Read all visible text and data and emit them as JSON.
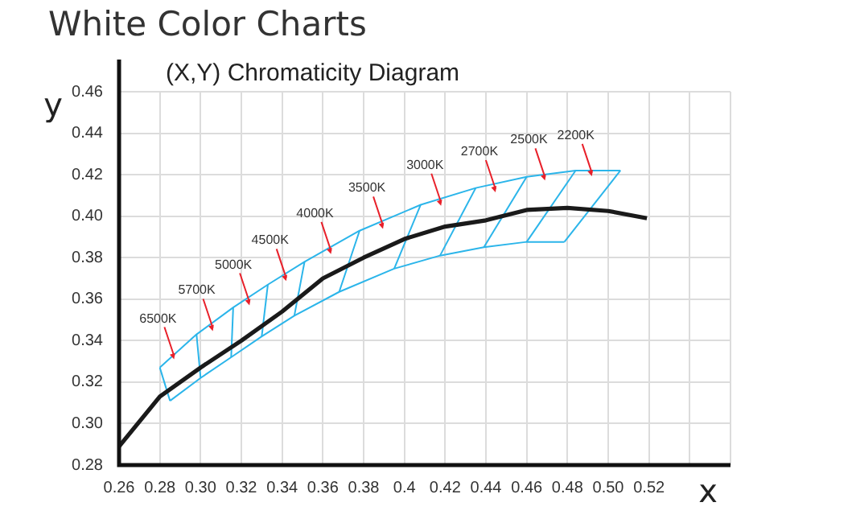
{
  "chart_data": {
    "type": "line",
    "title": "White Color Charts",
    "subtitle": "(X,Y) Chromaticity Diagram",
    "xlabel": "x",
    "ylabel": "y",
    "xlim": [
      0.26,
      0.56
    ],
    "ylim": [
      0.28,
      0.46
    ],
    "xticks": [
      0.26,
      0.28,
      {
        "value": 0.3,
        "label": "0.30"
      },
      0.32,
      0.34,
      0.36,
      0.38,
      0.4,
      0.42,
      0.44,
      0.46,
      0.48,
      {
        "value": 0.5,
        "label": "0.50"
      },
      0.52,
      {
        "value": 0.54,
        "label": null
      },
      {
        "value": 0.56,
        "label": null
      }
    ],
    "yticks": [
      0.28,
      {
        "value": 0.3,
        "label": "0.30"
      },
      0.32,
      0.34,
      0.36,
      0.38,
      {
        "value": 0.4,
        "label": "0.40"
      },
      0.42,
      0.44,
      0.46
    ],
    "grid": true,
    "legend": false,
    "marker": "none",
    "line_style": "solid",
    "series": [
      {
        "color": "#1a1a1a",
        "x": [
          0.26,
          0.28,
          0.3,
          0.32,
          0.34,
          0.36,
          0.38,
          0.4,
          0.42,
          0.44,
          0.46,
          0.48,
          0.5,
          0.519
        ],
        "values": [
          0.289,
          0.313,
          0.327,
          0.34,
          0.354,
          0.37,
          0.38,
          0.389,
          0.395,
          0.398,
          0.403,
          0.404,
          0.4025,
          0.399
        ]
      },
      {
        "color": "#2bb5ea",
        "x": [
          0.28,
          0.298,
          0.316,
          0.333,
          0.351,
          0.378,
          0.408,
          0.435,
          0.46,
          0.484,
          0.506
        ],
        "values": [
          0.327,
          0.343,
          0.356,
          0.367,
          0.378,
          0.393,
          0.4055,
          0.4136,
          0.419,
          0.422,
          0.422
        ]
      },
      {
        "color": "#2bb5ea",
        "x": [
          0.285,
          0.3,
          0.315,
          0.33,
          0.346,
          0.368,
          0.395,
          0.4175,
          0.439,
          0.46,
          0.4785
        ],
        "values": [
          0.311,
          0.322,
          0.332,
          0.342,
          0.352,
          0.3635,
          0.3747,
          0.381,
          0.385,
          0.3876,
          0.3876
        ]
      },
      {
        "color": "#2bb5ea",
        "x": [
          0.28,
          0.285
        ],
        "values": [
          0.327,
          0.311
        ]
      },
      {
        "color": "#2bb5ea",
        "x": [
          0.298,
          0.3
        ],
        "values": [
          0.343,
          0.322
        ]
      },
      {
        "color": "#2bb5ea",
        "x": [
          0.316,
          0.315
        ],
        "values": [
          0.356,
          0.332
        ]
      },
      {
        "color": "#2bb5ea",
        "x": [
          0.333,
          0.33
        ],
        "values": [
          0.367,
          0.342
        ]
      },
      {
        "color": "#2bb5ea",
        "x": [
          0.351,
          0.346
        ],
        "values": [
          0.378,
          0.352
        ]
      },
      {
        "color": "#2bb5ea",
        "x": [
          0.378,
          0.368
        ],
        "values": [
          0.393,
          0.3635
        ]
      },
      {
        "color": "#2bb5ea",
        "x": [
          0.408,
          0.395
        ],
        "values": [
          0.4055,
          0.3747
        ]
      },
      {
        "color": "#2bb5ea",
        "x": [
          0.435,
          0.4175
        ],
        "values": [
          0.4136,
          0.381
        ]
      },
      {
        "color": "#2bb5ea",
        "x": [
          0.46,
          0.439
        ],
        "values": [
          0.419,
          0.385
        ]
      },
      {
        "color": "#2bb5ea",
        "x": [
          0.484,
          0.46
        ],
        "values": [
          0.422,
          0.3876
        ]
      },
      {
        "color": "#2bb5ea",
        "x": [
          0.506,
          0.4785
        ],
        "values": [
          0.422,
          0.3876
        ]
      }
    ],
    "annotations": [
      {
        "text": "6500K",
        "x": 0.287,
        "y": 0.331
      },
      {
        "text": "5700K",
        "x": 0.306,
        "y": 0.3446
      },
      {
        "text": "5000K",
        "x": 0.324,
        "y": 0.357
      },
      {
        "text": "4500K",
        "x": 0.342,
        "y": 0.3687
      },
      {
        "text": "4000K",
        "x": 0.364,
        "y": 0.3817
      },
      {
        "text": "3500K",
        "x": 0.3895,
        "y": 0.3939
      },
      {
        "text": "3000K",
        "x": 0.418,
        "y": 0.405
      },
      {
        "text": "2700K",
        "x": 0.4447,
        "y": 0.4115
      },
      {
        "text": "2500K",
        "x": 0.469,
        "y": 0.4172
      },
      {
        "text": "2200K",
        "x": 0.492,
        "y": 0.4193
      }
    ]
  }
}
